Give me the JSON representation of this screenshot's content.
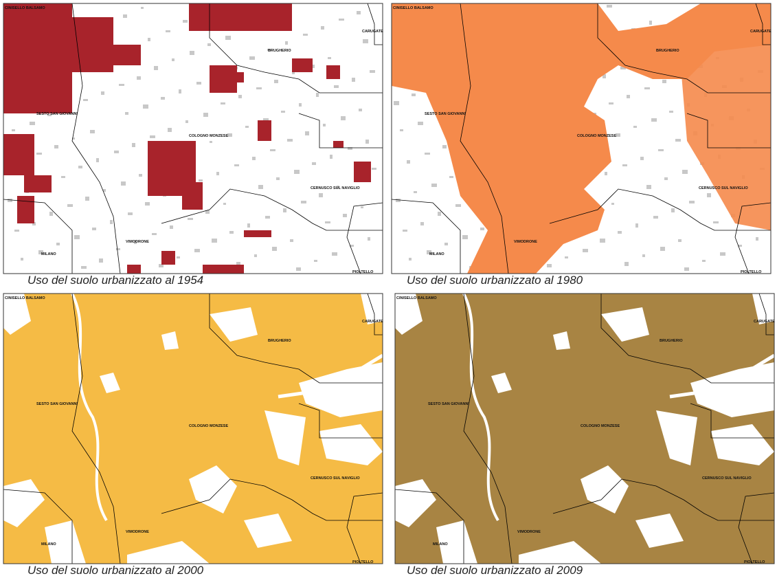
{
  "maps": [
    {
      "caption": "Uso del suolo urbanizzato al 1954",
      "labels": [
        "CINISELLO BALSAMO",
        "CARUGATE",
        "BRUGHERIO",
        "SESTO SAN GIOVANNI",
        "COLOGNO MONZESE",
        "CERNUSCO SUL NAVIGLIO",
        "VIMODRONE",
        "MILANO",
        "PIOLTELLO"
      ]
    },
    {
      "caption": "Uso del suolo urbanizzato al 1980",
      "labels": [
        "CINISELLO BALSAMO",
        "CARUGATE",
        "BRUGHERIO",
        "SESTO SAN GIOVANNI",
        "COLOGNO MONZESE",
        "CERNUSCO SUL NAVIGLIO",
        "VIMODRONE",
        "MILANO",
        "PIOLTELLO"
      ]
    },
    {
      "caption": "Uso del suolo urbanizzato al 2000",
      "labels": [
        "CINISELLO BALSAMO",
        "CARUGATE",
        "BRUGHERIO",
        "SESTO SAN GIOVANNI",
        "COLOGNO MONZESE",
        "CERNUSCO SUL NAVIGLIO",
        "VIMODRONE",
        "MILANO",
        "PIOLTELLO"
      ]
    },
    {
      "caption": "Uso del suolo urbanizzato al 2009",
      "labels": [
        "CINISELLO BALSAMO",
        "CARUGATE",
        "BRUGHERIO",
        "SESTO SAN GIOVANNI",
        "COLOGNO MONZESE",
        "CERNUSCO SUL NAVIGLIO",
        "VIMODRONE",
        "MILANO",
        "PIOLTELLO"
      ]
    }
  ]
}
